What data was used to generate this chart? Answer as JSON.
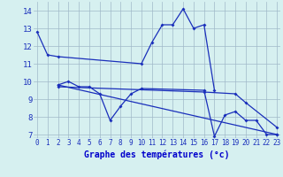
{
  "title": "Graphe des températures (°c)",
  "bg_color": "#cce8e8",
  "plot_bg_color": "#d6f0f0",
  "line_color": "#1a2fbb",
  "grid_color": "#a0b8c8",
  "series": [
    {
      "comment": "main arc line: 0->1->2 then skip to 10->11->12->13->14->15->16->17",
      "x": [
        0,
        1,
        2,
        10,
        11,
        12,
        13,
        14,
        15,
        16,
        17
      ],
      "y": [
        12.8,
        11.5,
        11.4,
        11.0,
        12.2,
        13.2,
        13.2,
        14.1,
        13.0,
        13.2,
        9.5
      ]
    },
    {
      "x": [
        2,
        3,
        4,
        5,
        6,
        7,
        8,
        9,
        10,
        16,
        17,
        18,
        19,
        20,
        21,
        22,
        23
      ],
      "y": [
        9.8,
        10.0,
        9.7,
        9.7,
        9.3,
        7.8,
        8.6,
        9.3,
        9.6,
        9.5,
        6.9,
        8.1,
        8.3,
        7.8,
        7.8,
        7.0,
        7.0
      ]
    },
    {
      "x": [
        2,
        23
      ],
      "y": [
        9.8,
        7.0
      ]
    },
    {
      "x": [
        2,
        16,
        19,
        20,
        23
      ],
      "y": [
        9.7,
        9.4,
        9.3,
        8.8,
        7.4
      ]
    }
  ],
  "xlim": [
    -0.3,
    23.3
  ],
  "ylim": [
    6.8,
    14.5
  ],
  "yticks": [
    7,
    8,
    9,
    10,
    11,
    12,
    13,
    14
  ],
  "xticks": [
    0,
    1,
    2,
    3,
    4,
    5,
    6,
    7,
    8,
    9,
    10,
    11,
    12,
    13,
    14,
    15,
    16,
    17,
    18,
    19,
    20,
    21,
    22,
    23
  ],
  "xlabel_color": "#0000cc",
  "tick_color": "#1a2fbb"
}
